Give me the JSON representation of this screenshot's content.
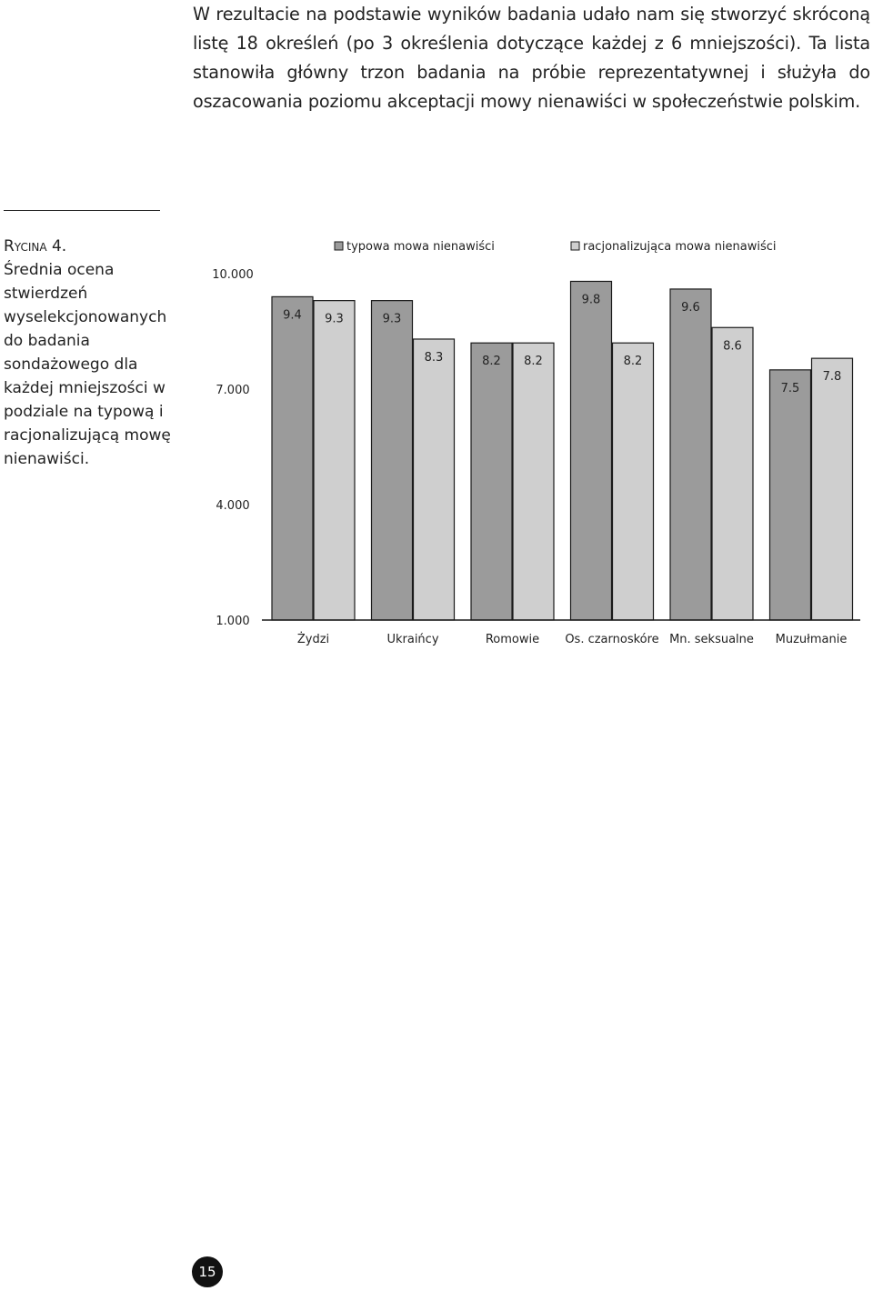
{
  "body_text": "W rezultacie na podstawie wyników badania udało nam się stworzyć skróconą listę 18 określeń (po 3 określenia dotyczące każdej z 6 mniejszości). Ta lista stanowiła główny trzon badania na próbie reprezentatywnej i służyła do oszacowania poziomu akceptacji mowy nienawiści w społeczeństwie polskim.",
  "figure": {
    "label": "Rycina 4.",
    "caption": "Średnia ocena stwierdzeń wyselekcjonowanych do badania sondażowego dla każdej mniejszości w podziale na typową i racjonalizującą mowę nienawiści."
  },
  "page_number": "15",
  "colors": {
    "series_typical": "#9b9b9b",
    "series_rational": "#cfcfcf",
    "stroke": "#1a1a1a",
    "text": "#222222"
  },
  "chart_data": {
    "type": "bar",
    "categories": [
      "Żydzi",
      "Ukraińcy",
      "Romowie",
      "Os. czarnoskóre",
      "Mn. seksualne",
      "Muzułmanie"
    ],
    "series": [
      {
        "name": "typowa mowa nienawiści",
        "values": [
          9.4,
          9.3,
          8.2,
          9.8,
          9.6,
          7.5
        ],
        "labels": [
          "9.4",
          "9.3",
          "8.2",
          "9.8",
          "9.6",
          "7.5"
        ]
      },
      {
        "name": "racjonalizująca mowa nienawiści",
        "values": [
          9.3,
          8.3,
          8.2,
          8.2,
          8.6,
          7.8
        ],
        "labels": [
          "9.3",
          "8.3",
          "8.2",
          "8.2",
          "8.6",
          "7.8"
        ]
      }
    ],
    "yticks": [
      1,
      4,
      7,
      10
    ],
    "ytick_labels": [
      "1.000",
      "4.000",
      "7.000",
      "10.000"
    ],
    "ylim": [
      1,
      10
    ],
    "legend": "top",
    "grid": false
  }
}
